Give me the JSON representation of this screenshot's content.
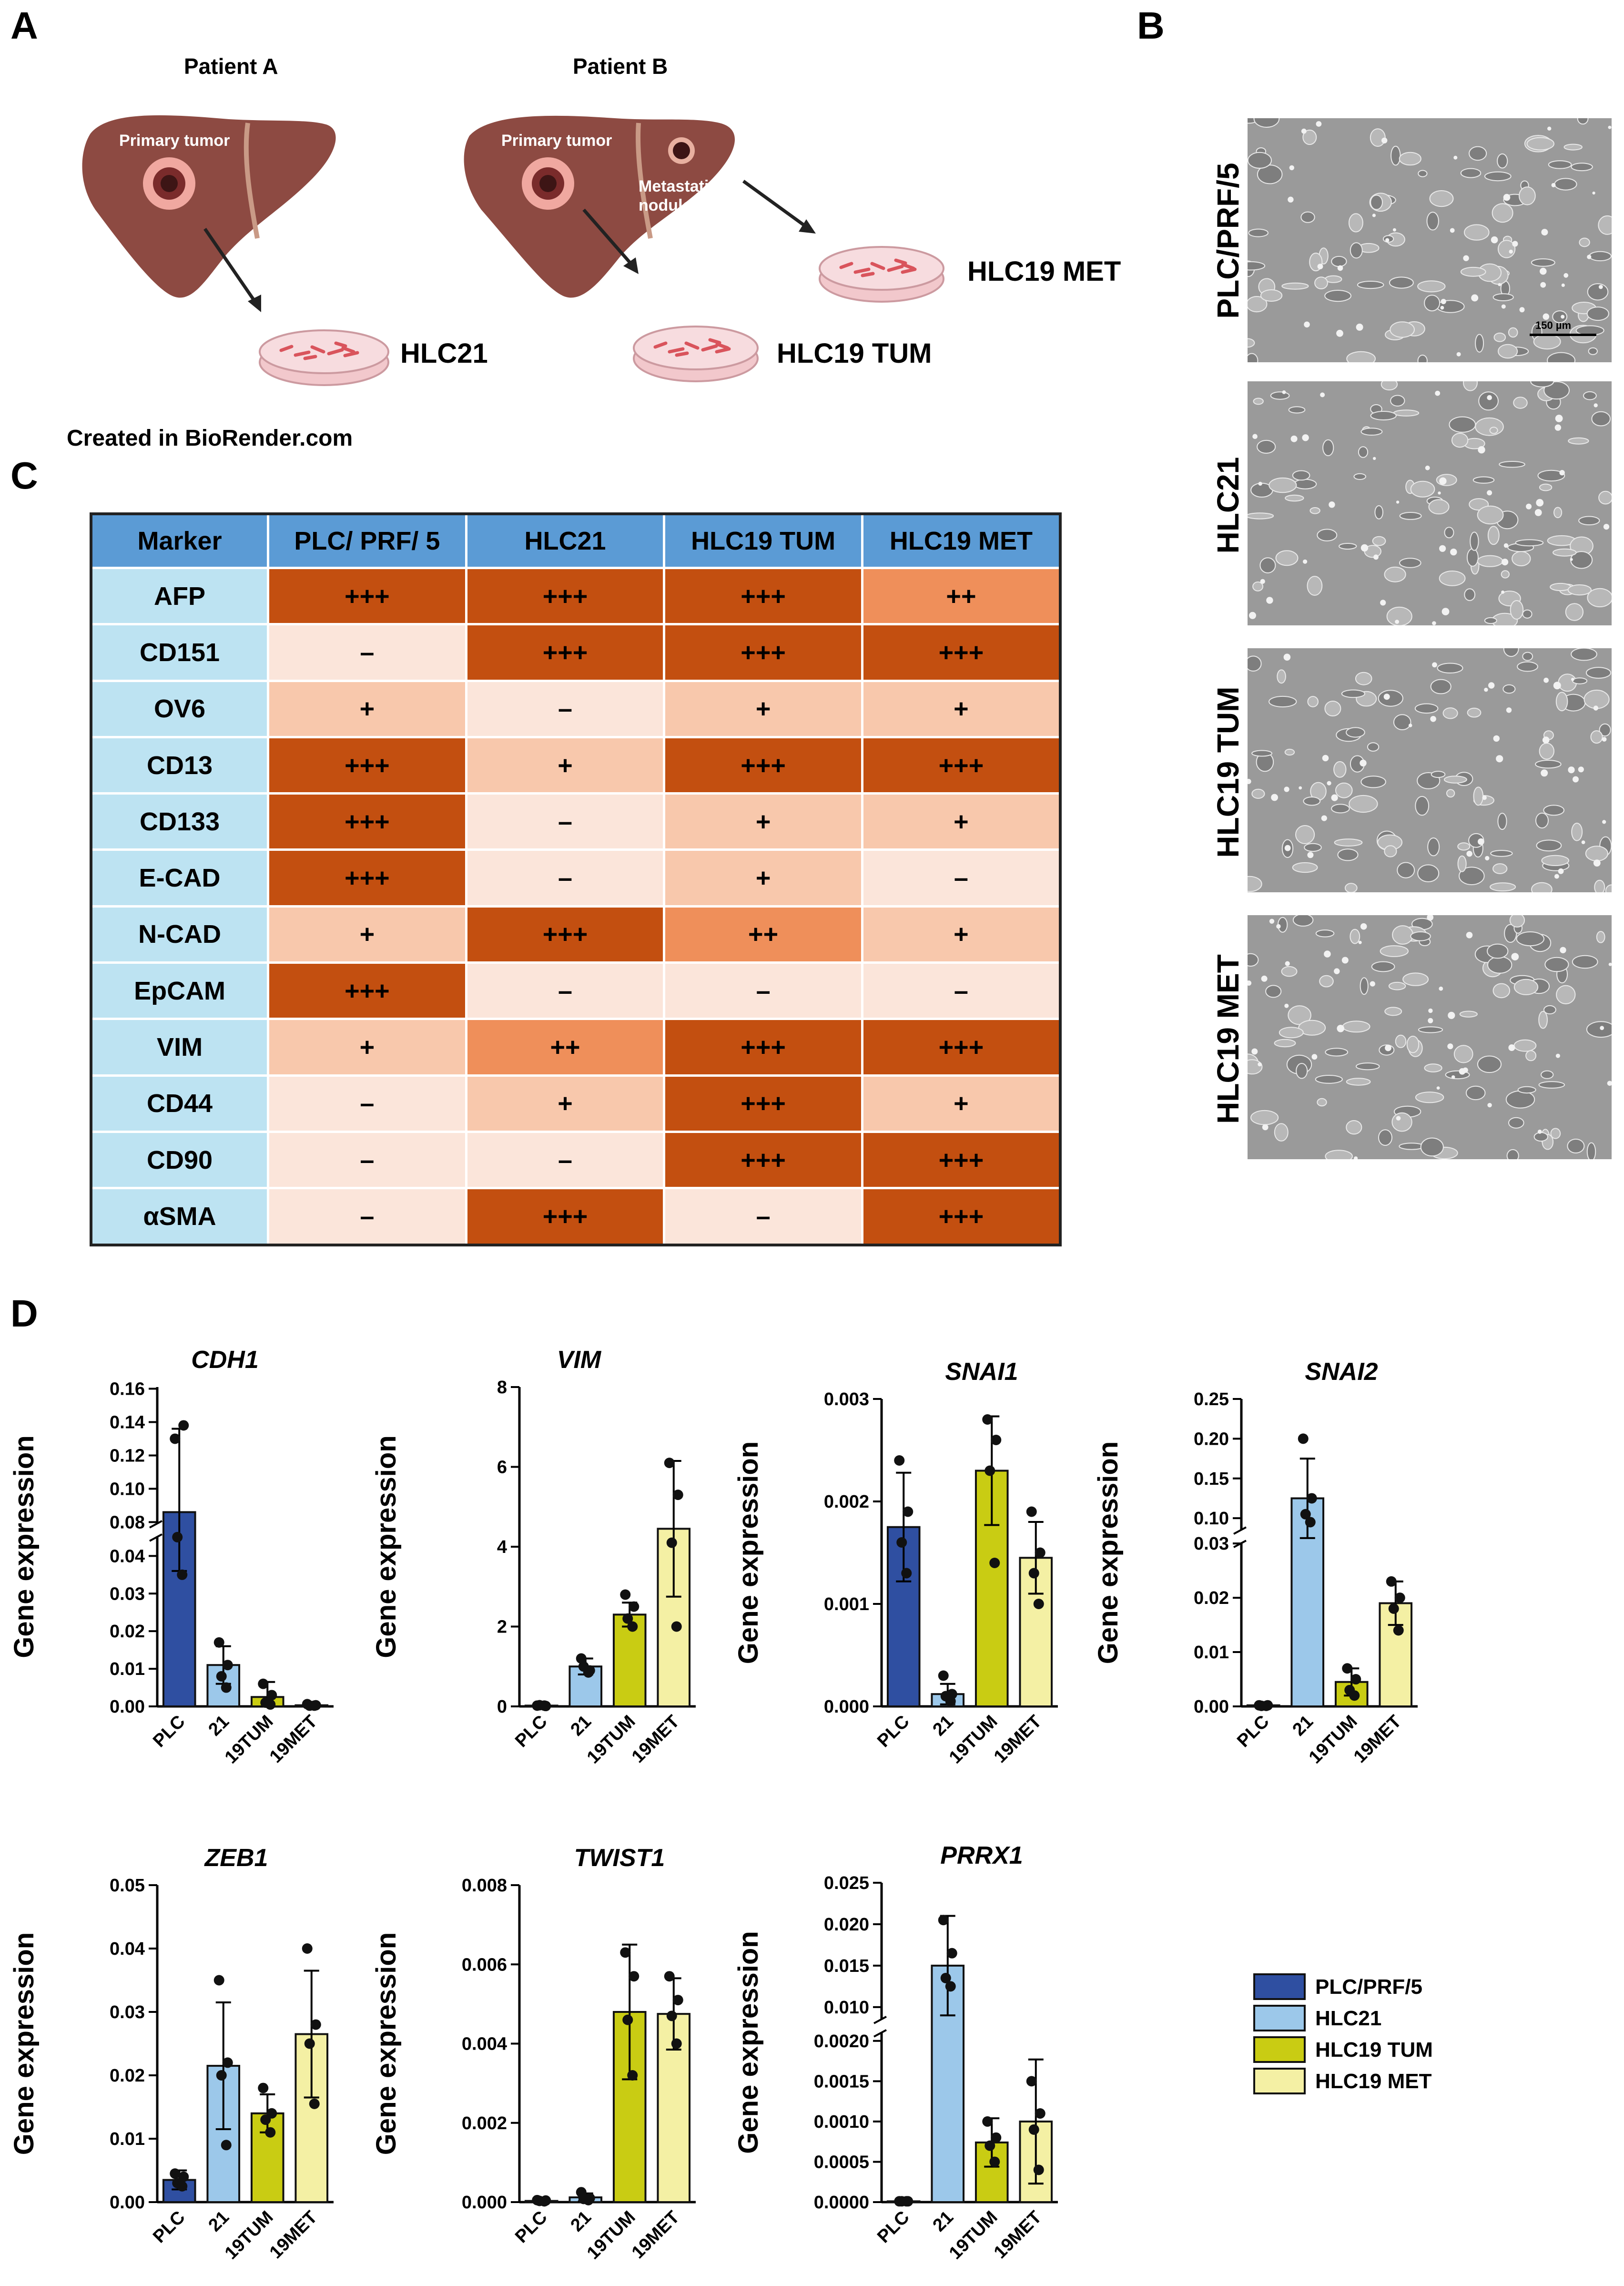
{
  "panels": {
    "a": "A",
    "b": "B",
    "c": "C",
    "d": "D"
  },
  "schematic": {
    "patient_a": "Patient A",
    "patient_b": "Patient B",
    "primary_tumor_a": "Primary tumor",
    "primary_tumor_b": "Primary tumor",
    "metastatic_line1": "Metastatic",
    "metastatic_line2": "nodule",
    "dish_hlc21": "HLC21",
    "dish_hlc19_tum": "HLC19 TUM",
    "dish_hlc19_met": "HLC19 MET",
    "credit": "Created in BioRender.com"
  },
  "micrographs": {
    "labels": [
      "PLC/PRF/5",
      "HLC21",
      "HLC19 TUM",
      "HLC19 MET"
    ],
    "scale_bar": "150 µm"
  },
  "table": {
    "columns": [
      "Marker",
      "PLC/ PRF/ 5",
      "HLC21",
      "HLC19 TUM",
      "HLC19 MET"
    ],
    "rows": [
      {
        "marker": "AFP",
        "values": [
          "+++",
          "+++",
          "+++",
          "++"
        ]
      },
      {
        "marker": "CD151",
        "values": [
          "–",
          "+++",
          "+++",
          "+++"
        ]
      },
      {
        "marker": "OV6",
        "values": [
          "+",
          "–",
          "+",
          "+"
        ]
      },
      {
        "marker": "CD13",
        "values": [
          "+++",
          "+",
          "+++",
          "+++"
        ]
      },
      {
        "marker": "CD133",
        "values": [
          "+++",
          "–",
          "+",
          "+"
        ]
      },
      {
        "marker": "E-CAD",
        "values": [
          "+++",
          "–",
          "+",
          "–"
        ]
      },
      {
        "marker": "N-CAD",
        "values": [
          "+",
          "+++",
          "++",
          "+"
        ]
      },
      {
        "marker": "EpCAM",
        "values": [
          "+++",
          "–",
          "–",
          "–"
        ]
      },
      {
        "marker": "VIM",
        "values": [
          "+",
          "++",
          "+++",
          "+++"
        ]
      },
      {
        "marker": "CD44",
        "values": [
          "–",
          "+",
          "+++",
          "+"
        ]
      },
      {
        "marker": "CD90",
        "values": [
          "–",
          "–",
          "+++",
          "+++"
        ]
      },
      {
        "marker": "αSMA",
        "values": [
          "–",
          "+++",
          "–",
          "+++"
        ]
      }
    ]
  },
  "legend": {
    "items": [
      {
        "label": "PLC/PRF/5",
        "color": "#2f4fa1"
      },
      {
        "label": "HLC21",
        "color": "#9cc8ea"
      },
      {
        "label": "HLC19 TUM",
        "color": "#c9cc13"
      },
      {
        "label": "HLC19 MET",
        "color": "#f4f0a4"
      }
    ]
  },
  "chart_data": [
    {
      "type": "bar",
      "title": "CDH1",
      "ylabel": "Gene expression",
      "categories": [
        "PLC",
        "21",
        "19TUM",
        "19MET"
      ],
      "values": [
        0.086,
        0.011,
        0.0025,
        0.0003
      ],
      "errors": [
        0.05,
        0.005,
        0.004,
        0.0003
      ],
      "points": [
        [
          0.13,
          0.138,
          0.045,
          0.035
        ],
        [
          0.017,
          0.011,
          0.008,
          0.005
        ],
        [
          0.006,
          0.003,
          0.001,
          0.0005
        ],
        [
          0.0006,
          0.0003,
          0.0002,
          0.0002
        ]
      ],
      "broken": true,
      "lower": {
        "range": [
          0,
          0.045
        ],
        "ticks": [
          "0.00",
          "0.01",
          "0.02",
          "0.03",
          "0.04"
        ]
      },
      "upper": {
        "range": [
          0.079,
          0.161
        ],
        "ticks": [
          "0.08",
          "0.10",
          "0.12",
          "0.14",
          "0.16"
        ]
      }
    },
    {
      "type": "bar",
      "title": "VIM",
      "ylabel": "Gene expression",
      "categories": [
        "PLC",
        "21",
        "19TUM",
        "19MET"
      ],
      "values": [
        0.02,
        1.0,
        2.3,
        4.45
      ],
      "errors": [
        0.02,
        0.2,
        0.3,
        1.7
      ],
      "points": [
        [
          0.02,
          0.01,
          0.03,
          0.02
        ],
        [
          1.2,
          0.9,
          1.0,
          0.85
        ],
        [
          2.8,
          2.5,
          2.2,
          2.0
        ],
        [
          6.1,
          5.3,
          4.1,
          2.0
        ]
      ],
      "broken": false,
      "ylim": [
        0,
        8
      ],
      "ticks": [
        "0",
        "2",
        "4",
        "6",
        "8"
      ]
    },
    {
      "type": "bar",
      "title": "SNAI1",
      "ylabel": "Gene expression",
      "categories": [
        "PLC",
        "21",
        "19TUM",
        "19MET"
      ],
      "values": [
        0.00175,
        0.00012,
        0.0023,
        0.00145
      ],
      "errors": [
        0.00053,
        0.0001,
        0.00053,
        0.00035
      ],
      "points": [
        [
          0.0024,
          0.0019,
          0.0016,
          0.0013
        ],
        [
          0.0003,
          0.00012,
          0.0001,
          5e-05
        ],
        [
          0.0028,
          0.0026,
          0.0023,
          0.0014
        ],
        [
          0.0019,
          0.0015,
          0.0013,
          0.001
        ]
      ],
      "broken": false,
      "ylim": [
        0,
        0.003
      ],
      "ticks": [
        "0.000",
        "0.001",
        "0.002",
        "0.003"
      ]
    },
    {
      "type": "bar",
      "title": "SNAI2",
      "ylabel": "Gene expression",
      "categories": [
        "PLC",
        "21",
        "19TUM",
        "19MET"
      ],
      "values": [
        0.0002,
        0.125,
        0.0045,
        0.019
      ],
      "errors": [
        0.0001,
        0.05,
        0.0025,
        0.004
      ],
      "points": [
        [
          0.0002,
          0.0002,
          0.0001,
          0.0001
        ],
        [
          0.2,
          0.125,
          0.105,
          0.095
        ],
        [
          0.007,
          0.005,
          0.003,
          0.002
        ],
        [
          0.023,
          0.02,
          0.018,
          0.014
        ]
      ],
      "broken": true,
      "lower": {
        "range": [
          0,
          0.03
        ],
        "ticks": [
          "0.00",
          "0.01",
          "0.02",
          "0.03"
        ]
      },
      "upper": {
        "range": [
          0.085,
          0.25
        ],
        "ticks": [
          "0.10",
          "0.15",
          "0.20",
          "0.25"
        ]
      }
    },
    {
      "type": "bar",
      "title": "ZEB1",
      "ylabel": "Gene expression",
      "categories": [
        "PLC",
        "21",
        "19TUM",
        "19MET"
      ],
      "values": [
        0.0035,
        0.0215,
        0.014,
        0.0265
      ],
      "errors": [
        0.0015,
        0.01,
        0.003,
        0.01
      ],
      "points": [
        [
          0.0045,
          0.004,
          0.003,
          0.0025
        ],
        [
          0.035,
          0.022,
          0.02,
          0.009
        ],
        [
          0.018,
          0.014,
          0.013,
          0.011
        ],
        [
          0.04,
          0.028,
          0.025,
          0.0155
        ]
      ],
      "broken": false,
      "ylim": [
        0,
        0.05
      ],
      "ticks": [
        "0.00",
        "0.01",
        "0.02",
        "0.03",
        "0.04",
        "0.05"
      ]
    },
    {
      "type": "bar",
      "title": "TWIST1",
      "ylabel": "Gene expression",
      "categories": [
        "PLC",
        "21",
        "19TUM",
        "19MET"
      ],
      "values": [
        3e-05,
        0.00012,
        0.0048,
        0.00475
      ],
      "errors": [
        2e-05,
        0.0001,
        0.0017,
        0.0009
      ],
      "points": [
        [
          5e-05,
          4e-05,
          3e-05,
          2e-05
        ],
        [
          0.00025,
          0.0001,
          8e-05,
          5e-05
        ],
        [
          0.0063,
          0.0057,
          0.0046,
          0.0032
        ],
        [
          0.0057,
          0.0051,
          0.0047,
          0.004
        ]
      ],
      "broken": false,
      "ylim": [
        0,
        0.008
      ],
      "ticks": [
        "0.000",
        "0.002",
        "0.004",
        "0.006",
        "0.008"
      ]
    },
    {
      "type": "bar",
      "title": "PRRX1",
      "ylabel": "Gene expression",
      "categories": [
        "PLC",
        "21",
        "19TUM",
        "19MET"
      ],
      "values": [
        1e-05,
        0.015,
        0.00074,
        0.001
      ],
      "errors": [
        1e-05,
        0.006,
        0.0003,
        0.00077
      ],
      "points": [
        [
          1e-05,
          1e-05,
          1e-05,
          1e-05
        ],
        [
          0.0205,
          0.0165,
          0.0135,
          0.0125
        ],
        [
          0.001,
          0.0008,
          0.0007,
          0.0005
        ],
        [
          0.0015,
          0.0011,
          0.0009,
          0.0004
        ]
      ],
      "broken": true,
      "lower": {
        "range": [
          0,
          0.0021
        ],
        "ticks": [
          "0.0000",
          "0.0005",
          "0.0010",
          "0.0015",
          "0.0020"
        ]
      },
      "upper": {
        "range": [
          0.0085,
          0.025
        ],
        "ticks": [
          "0.010",
          "0.015",
          "0.020",
          "0.025"
        ]
      }
    }
  ]
}
